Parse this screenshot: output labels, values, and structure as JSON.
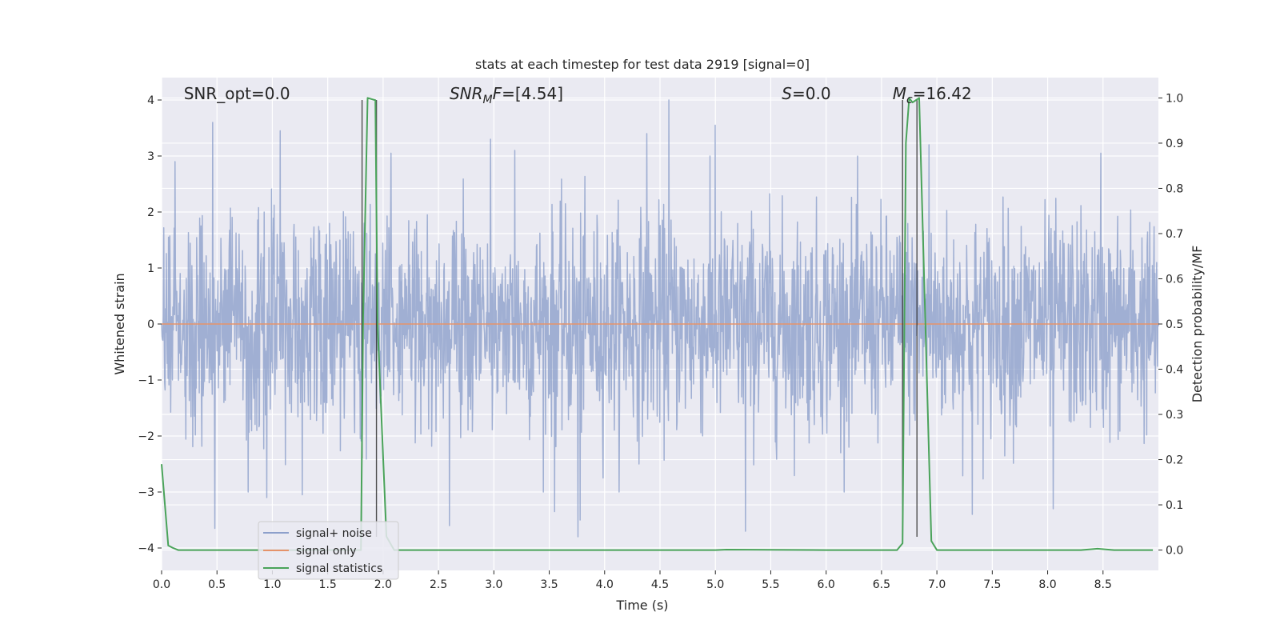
{
  "chart_data": {
    "type": "line",
    "title": "stats at each timestep for test data 2919 [signal=0]",
    "xlabel": "Time (s)",
    "ylabel": "Whitened strain",
    "y2label": "Detection probability/MF",
    "xlim": [
      0.0,
      9.0
    ],
    "ylim": [
      -4.4,
      4.4
    ],
    "y2lim": [
      -0.045,
      1.045
    ],
    "x_ticks": [
      "0.0",
      "0.5",
      "1.0",
      "1.5",
      "2.0",
      "2.5",
      "3.0",
      "3.5",
      "4.0",
      "4.5",
      "5.0",
      "5.5",
      "6.0",
      "6.5",
      "7.0",
      "7.5",
      "8.0",
      "8.5"
    ],
    "y_ticks": [
      "4",
      "3",
      "2",
      "1",
      "0",
      "−1",
      "−2",
      "−3",
      "−4"
    ],
    "y2_ticks": [
      "1.0",
      "0.9",
      "0.8",
      "0.7",
      "0.6",
      "0.5",
      "0.4",
      "0.3",
      "0.2",
      "0.1",
      "0.0"
    ],
    "grid": true,
    "legend_position": "lower-left",
    "annotations": [
      {
        "key": "snr_opt",
        "x": 0.2,
        "parts": [
          {
            "t": "SNR_opt=0.0",
            "i": false,
            "s": false
          }
        ]
      },
      {
        "key": "snr_mf",
        "x": 2.6,
        "parts": [
          {
            "t": "SNR",
            "i": true,
            "s": false
          },
          {
            "t": "M",
            "i": true,
            "s": true
          },
          {
            "t": "F",
            "i": true,
            "s": false
          },
          {
            "t": "=[4.54]",
            "i": false,
            "s": false
          }
        ]
      },
      {
        "key": "s",
        "x": 5.6,
        "parts": [
          {
            "t": "S",
            "i": true,
            "s": false
          },
          {
            "t": "=0.0",
            "i": false,
            "s": false
          }
        ]
      },
      {
        "key": "mc",
        "x": 6.6,
        "parts": [
          {
            "t": "M",
            "i": true,
            "s": false
          },
          {
            "t": "c",
            "i": true,
            "s": true
          },
          {
            "t": "=16.42",
            "i": false,
            "s": false
          }
        ]
      }
    ],
    "vlines": [
      {
        "x": 1.81,
        "y_top": 4.0,
        "y_bottom": -2.4
      },
      {
        "x": 1.94,
        "y_top": 4.0,
        "y_bottom": -3.8
      },
      {
        "x": 6.69,
        "y_top": 4.0,
        "y_bottom": -3.8
      },
      {
        "x": 6.82,
        "y_top": 4.0,
        "y_bottom": -3.8
      }
    ],
    "series": [
      {
        "name": "signal+ noise",
        "color": "#8da0cb",
        "kind": "noisy-strain",
        "n_samples": 2304,
        "sigma": 0.95,
        "peaks": [
          {
            "x": 0.46,
            "y": 3.6
          },
          {
            "x": 0.48,
            "y": -3.65
          },
          {
            "x": 1.07,
            "y": 3.45
          },
          {
            "x": 1.27,
            "y": -3.05
          },
          {
            "x": 2.07,
            "y": 3.05
          },
          {
            "x": 2.6,
            "y": -3.6
          },
          {
            "x": 2.97,
            "y": 3.3
          },
          {
            "x": 3.19,
            "y": 3.1
          },
          {
            "x": 3.76,
            "y": -3.8
          },
          {
            "x": 3.78,
            "y": -3.5
          },
          {
            "x": 4.38,
            "y": 3.4
          },
          {
            "x": 4.58,
            "y": 4.0
          },
          {
            "x": 5.0,
            "y": 3.55
          },
          {
            "x": 5.27,
            "y": -3.7
          },
          {
            "x": 6.93,
            "y": 3.2
          },
          {
            "x": 7.32,
            "y": -3.4
          },
          {
            "x": 8.05,
            "y": -3.3
          },
          {
            "x": 8.48,
            "y": 3.05
          },
          {
            "x": 0.12,
            "y": 2.9
          },
          {
            "x": 0.95,
            "y": -3.1
          },
          {
            "x": 3.55,
            "y": -3.35
          }
        ]
      },
      {
        "name": "signal only",
        "color": "#e5926a",
        "kind": "flat",
        "y": 0.0
      },
      {
        "name": "signal statistics",
        "color": "#4aa35a",
        "axis": "right",
        "x": [
          0.0,
          0.03,
          0.06,
          0.1,
          0.15,
          0.5,
          1.0,
          1.5,
          1.8,
          1.82,
          1.86,
          1.93,
          1.95,
          2.03,
          2.1,
          3.0,
          4.0,
          5.0,
          5.1,
          6.0,
          6.64,
          6.69,
          6.72,
          6.75,
          6.78,
          6.84,
          6.95,
          7.0,
          7.5,
          8.0,
          8.3,
          8.45,
          8.6,
          8.95
        ],
        "y": [
          0.19,
          0.1,
          0.01,
          0.005,
          0.0,
          0.0,
          0.0,
          0.0,
          0.0,
          0.52,
          1.0,
          0.995,
          0.5,
          0.03,
          0.0,
          0.0,
          0.0,
          0.0,
          0.001,
          0.0,
          0.0,
          0.015,
          0.9,
          1.0,
          0.99,
          1.0,
          0.02,
          0.0,
          0.0,
          0.0,
          0.0,
          0.003,
          0.0,
          0.0
        ]
      }
    ]
  }
}
